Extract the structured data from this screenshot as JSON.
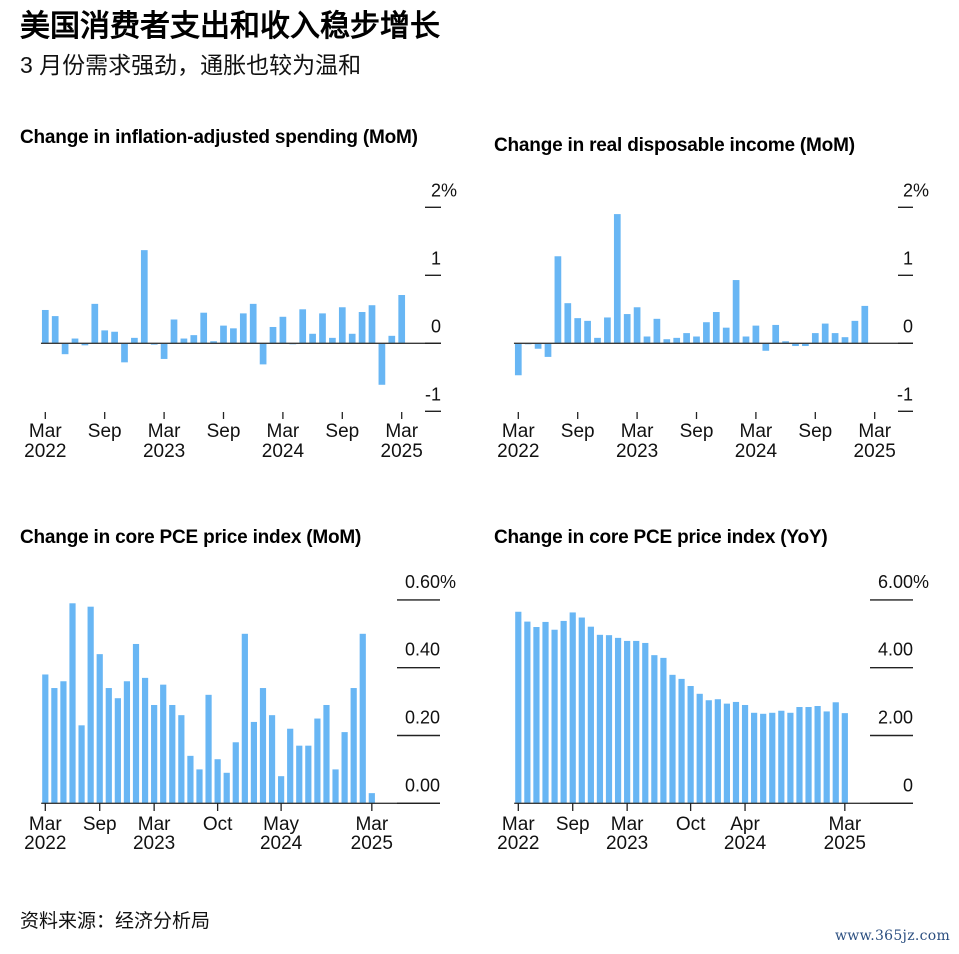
{
  "header": {
    "title": "美国消费者支出和收入稳步增长",
    "subtitle": "3 月份需求强劲，通胀也较为温和"
  },
  "footer": {
    "source": "资料来源：经济分析局",
    "watermark": "www.365jz.com"
  },
  "colors": {
    "bar": "#68b6f4",
    "axis": "#222222",
    "baseline": "#3a3a3a",
    "watermark": "#2c4f80"
  },
  "chart_data": [
    {
      "type": "bar",
      "title": "Change in inflation-adjusted spending (MoM)",
      "xlabel": "",
      "ylabel": "",
      "unit": "%",
      "ylim": [
        -1,
        2
      ],
      "yticks": [
        2,
        1,
        0,
        -1
      ],
      "ytick_labels": [
        "2%",
        "1",
        "0",
        "-1"
      ],
      "y_axis_position": "right",
      "grid": false,
      "categories": [
        "2022-03",
        "2022-04",
        "2022-05",
        "2022-06",
        "2022-07",
        "2022-08",
        "2022-09",
        "2022-10",
        "2022-11",
        "2022-12",
        "2023-01",
        "2023-02",
        "2023-03",
        "2023-04",
        "2023-05",
        "2023-06",
        "2023-07",
        "2023-08",
        "2023-09",
        "2023-10",
        "2023-11",
        "2023-12",
        "2024-01",
        "2024-02",
        "2024-03",
        "2024-04",
        "2024-05",
        "2024-06",
        "2024-07",
        "2024-08",
        "2024-09",
        "2024-10",
        "2024-11",
        "2024-12",
        "2025-01",
        "2025-02",
        "2025-03"
      ],
      "values": [
        0.49,
        0.4,
        -0.16,
        0.07,
        -0.03,
        0.58,
        0.19,
        0.17,
        -0.28,
        0.08,
        1.37,
        -0.02,
        -0.23,
        0.35,
        0.07,
        0.12,
        0.45,
        0.03,
        0.26,
        0.22,
        0.44,
        0.58,
        -0.31,
        0.24,
        0.39,
        -0.01,
        0.5,
        0.14,
        0.44,
        0.08,
        0.53,
        0.14,
        0.46,
        0.56,
        -0.61,
        0.11,
        0.71
      ],
      "xticks": [
        {
          "at": "2022-03",
          "line1": "Mar",
          "line2": "2022"
        },
        {
          "at": "2022-09",
          "line1": "Sep",
          "line2": ""
        },
        {
          "at": "2023-03",
          "line1": "Mar",
          "line2": "2023"
        },
        {
          "at": "2023-09",
          "line1": "Sep",
          "line2": ""
        },
        {
          "at": "2024-03",
          "line1": "Mar",
          "line2": "2024"
        },
        {
          "at": "2024-09",
          "line1": "Sep",
          "line2": ""
        },
        {
          "at": "2025-03",
          "line1": "Mar",
          "line2": "2025"
        }
      ]
    },
    {
      "type": "bar",
      "title": "Change in real disposable income (MoM)",
      "xlabel": "",
      "ylabel": "",
      "unit": "%",
      "ylim": [
        -1,
        2
      ],
      "yticks": [
        2,
        1,
        0,
        -1
      ],
      "ytick_labels": [
        "2%",
        "1",
        "0",
        "-1"
      ],
      "y_axis_position": "right",
      "grid": false,
      "categories": [
        "2022-03",
        "2022-04",
        "2022-05",
        "2022-06",
        "2022-07",
        "2022-08",
        "2022-09",
        "2022-10",
        "2022-11",
        "2022-12",
        "2023-01",
        "2023-02",
        "2023-03",
        "2023-04",
        "2023-05",
        "2023-06",
        "2023-07",
        "2023-08",
        "2023-09",
        "2023-10",
        "2023-11",
        "2023-12",
        "2024-01",
        "2024-02",
        "2024-03",
        "2024-04",
        "2024-05",
        "2024-06",
        "2024-07",
        "2024-08",
        "2024-09",
        "2024-10",
        "2024-11",
        "2024-12",
        "2025-01",
        "2025-02",
        "2025-03"
      ],
      "values": [
        -0.47,
        -0.01,
        -0.08,
        -0.2,
        1.28,
        0.59,
        0.37,
        0.33,
        0.08,
        0.38,
        1.9,
        0.43,
        0.53,
        0.1,
        0.36,
        0.06,
        0.08,
        0.15,
        0.1,
        0.31,
        0.46,
        0.23,
        0.93,
        0.1,
        0.26,
        -0.11,
        0.27,
        0.03,
        -0.04,
        -0.04,
        0.15,
        0.29,
        0.15,
        0.09,
        0.33,
        0.55,
        null
      ],
      "xticks": [
        {
          "at": "2022-03",
          "line1": "Mar",
          "line2": "2022"
        },
        {
          "at": "2022-09",
          "line1": "Sep",
          "line2": ""
        },
        {
          "at": "2023-03",
          "line1": "Mar",
          "line2": "2023"
        },
        {
          "at": "2023-09",
          "line1": "Sep",
          "line2": ""
        },
        {
          "at": "2024-03",
          "line1": "Mar",
          "line2": "2024"
        },
        {
          "at": "2024-09",
          "line1": "Sep",
          "line2": ""
        },
        {
          "at": "2025-03",
          "line1": "Mar",
          "line2": "2025"
        }
      ]
    },
    {
      "type": "bar",
      "title": "Change in core PCE price index (MoM)",
      "xlabel": "",
      "ylabel": "",
      "unit": "%",
      "ylim": [
        0,
        0.6
      ],
      "yticks": [
        0.6,
        0.4,
        0.2,
        0
      ],
      "ytick_labels": [
        "0.60%",
        "0.40",
        "0.20",
        "0.00"
      ],
      "y_axis_position": "right",
      "grid": false,
      "categories": [
        "2022-03",
        "2022-04",
        "2022-05",
        "2022-06",
        "2022-07",
        "2022-08",
        "2022-09",
        "2022-10",
        "2022-11",
        "2022-12",
        "2023-01",
        "2023-02",
        "2023-03",
        "2023-04",
        "2023-05",
        "2023-06",
        "2023-07",
        "2023-08",
        "2023-09",
        "2023-10",
        "2023-11",
        "2023-12",
        "2024-01",
        "2024-02",
        "2024-03",
        "2024-04",
        "2024-05",
        "2024-06",
        "2024-07",
        "2024-08",
        "2024-09",
        "2024-10",
        "2024-11",
        "2024-12",
        "2025-01",
        "2025-02",
        "2025-03"
      ],
      "values": [
        0.38,
        0.34,
        0.36,
        0.59,
        0.23,
        0.58,
        0.44,
        0.34,
        0.31,
        0.36,
        0.47,
        0.37,
        0.29,
        0.35,
        0.29,
        0.26,
        0.14,
        0.1,
        0.32,
        0.13,
        0.09,
        0.18,
        0.5,
        0.24,
        0.34,
        0.26,
        0.08,
        0.22,
        0.17,
        0.17,
        0.25,
        0.29,
        0.1,
        0.21,
        0.34,
        0.5,
        0.03
      ],
      "xticks": [
        {
          "at": "2022-03",
          "line1": "Mar",
          "line2": "2022"
        },
        {
          "at": "2022-09",
          "line1": "Sep",
          "line2": ""
        },
        {
          "at": "2023-03",
          "line1": "Mar",
          "line2": "2023"
        },
        {
          "at": "2023-10",
          "line1": "Oct",
          "line2": ""
        },
        {
          "at": "2024-05",
          "line1": "May",
          "line2": "2024"
        },
        {
          "at": "2025-03",
          "line1": "Mar",
          "line2": "2025"
        }
      ]
    },
    {
      "type": "bar",
      "title": "Change in core PCE price index (YoY)",
      "xlabel": "",
      "ylabel": "",
      "unit": "%",
      "ylim": [
        0,
        6
      ],
      "yticks": [
        6,
        4,
        2,
        0
      ],
      "ytick_labels": [
        "6.00%",
        "4.00",
        "2.00",
        "0"
      ],
      "y_axis_position": "right",
      "grid": false,
      "categories": [
        "2022-03",
        "2022-04",
        "2022-05",
        "2022-06",
        "2022-07",
        "2022-08",
        "2022-09",
        "2022-10",
        "2022-11",
        "2022-12",
        "2023-01",
        "2023-02",
        "2023-03",
        "2023-04",
        "2023-05",
        "2023-06",
        "2023-07",
        "2023-08",
        "2023-09",
        "2023-10",
        "2023-11",
        "2023-12",
        "2024-01",
        "2024-02",
        "2024-03",
        "2024-04",
        "2024-05",
        "2024-06",
        "2024-07",
        "2024-08",
        "2024-09",
        "2024-10",
        "2024-11",
        "2024-12",
        "2025-01",
        "2025-02",
        "2025-03"
      ],
      "values": [
        5.65,
        5.36,
        5.2,
        5.35,
        5.12,
        5.38,
        5.63,
        5.48,
        5.21,
        4.97,
        4.96,
        4.88,
        4.79,
        4.79,
        4.73,
        4.37,
        4.29,
        3.79,
        3.67,
        3.46,
        3.23,
        3.04,
        3.07,
        2.94,
        2.99,
        2.9,
        2.67,
        2.64,
        2.67,
        2.73,
        2.67,
        2.84,
        2.84,
        2.87,
        2.71,
        2.98,
        2.66
      ],
      "xticks": [
        {
          "at": "2022-03",
          "line1": "Mar",
          "line2": "2022"
        },
        {
          "at": "2022-09",
          "line1": "Sep",
          "line2": ""
        },
        {
          "at": "2023-03",
          "line1": "Mar",
          "line2": "2023"
        },
        {
          "at": "2023-10",
          "line1": "Oct",
          "line2": ""
        },
        {
          "at": "2024-04",
          "line1": "Apr",
          "line2": "2024"
        },
        {
          "at": "2025-03",
          "line1": "Mar",
          "line2": "2025"
        }
      ]
    }
  ]
}
